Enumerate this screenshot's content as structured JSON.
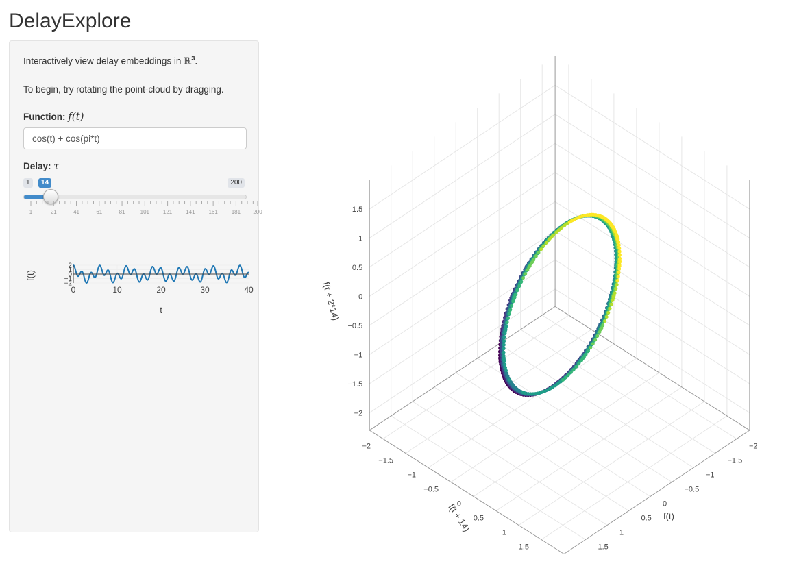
{
  "app": {
    "title": "DelayExplore"
  },
  "sidebar": {
    "intro_prefix": "Interactively view delay embeddings in ",
    "intro_space": "ℝ",
    "intro_exp": "3",
    "intro_suffix": ".",
    "hint": "To begin, try rotating the point-cloud by dragging.",
    "function_label": "Function:",
    "function_math": "f(t)",
    "function_value": "cos(t) + cos(pi*t)",
    "delay_label": "Delay:",
    "delay_math": "τ",
    "slider": {
      "min": 1,
      "max": 200,
      "value": 14,
      "min_label": "1",
      "max_label": "200",
      "value_label": "14",
      "tick_labels": [
        "1",
        "21",
        "41",
        "61",
        "81",
        "101",
        "121",
        "141",
        "161",
        "181",
        "200"
      ]
    }
  },
  "mini_plot": {
    "ylabel": "f(t)",
    "xlabel": "t",
    "x_ticks": [
      "0",
      "10",
      "20",
      "30",
      "40"
    ],
    "y_ticks": [
      "2",
      "1",
      "0",
      "−1",
      "−2"
    ],
    "line_color": "#1f77b4"
  },
  "plot3d": {
    "axis_x_title": "f(t)",
    "axis_y_title": "f(t + 14)",
    "axis_z_title": "f(t + 2*14)",
    "x_ticks": [
      "−2",
      "−1.5",
      "−1",
      "−0.5",
      "0",
      "0.5",
      "1",
      "1.5"
    ],
    "y_ticks": [
      "−2",
      "−1.5",
      "−1",
      "−0.5",
      "0",
      "0.5",
      "1",
      "1.5"
    ],
    "z_ticks": [
      "−2",
      "−1.5",
      "−1",
      "−0.5",
      "0",
      "0.5",
      "1",
      "1.5"
    ],
    "colorscale": "viridis"
  },
  "chart_data": {
    "type": "line",
    "function": "cos(t) + cos(pi*t)",
    "xlim": [
      0,
      40
    ],
    "ylim": [
      -2,
      2
    ],
    "xlabel": "t",
    "ylabel": "f(t)"
  }
}
